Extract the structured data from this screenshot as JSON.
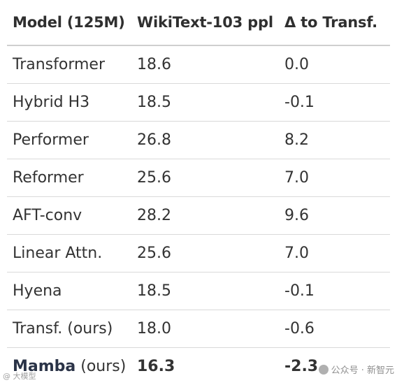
{
  "table": {
    "headers": [
      "Model (125M)",
      "WikiText-103 ppl",
      "Δ to Transf."
    ],
    "rows": [
      {
        "model": "Transformer",
        "model_suffix": "",
        "ppl": "18.6",
        "delta": "0.0"
      },
      {
        "model": "Hybrid H3",
        "model_suffix": "",
        "ppl": "18.5",
        "delta": "-0.1"
      },
      {
        "model": "Performer",
        "model_suffix": "",
        "ppl": "26.8",
        "delta": "8.2"
      },
      {
        "model": "Reformer",
        "model_suffix": "",
        "ppl": "25.6",
        "delta": "7.0"
      },
      {
        "model": "AFT-conv",
        "model_suffix": "",
        "ppl": "28.2",
        "delta": "9.6"
      },
      {
        "model": "Linear Attn.",
        "model_suffix": "",
        "ppl": "25.6",
        "delta": "7.0"
      },
      {
        "model": "Hyena",
        "model_suffix": "",
        "ppl": "18.5",
        "delta": "-0.1"
      },
      {
        "model": "Transf. (ours)",
        "model_suffix": "",
        "ppl": "18.0",
        "delta": "-0.6"
      },
      {
        "model": "Mamba",
        "model_suffix": " (ours)",
        "ppl": "16.3",
        "delta": "-2.3"
      }
    ]
  },
  "watermark": {
    "left": "@ 大模型",
    "right": "公众号 · 新智元",
    "right_icon": "wechat-icon"
  }
}
